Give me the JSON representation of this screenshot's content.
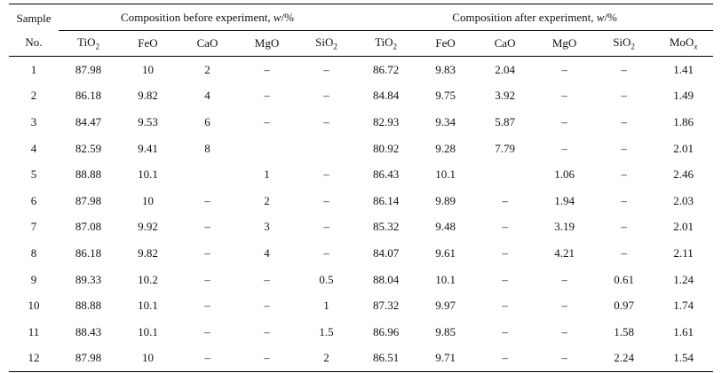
{
  "header": {
    "sample_line1": "Sample",
    "sample_line2": "No.",
    "before_prefix": "Composition before experiment, ",
    "after_prefix": "Composition after experiment, ",
    "w_symbol": "w",
    "percent_suffix": "/%",
    "before_columns": [
      {
        "base": "TiO",
        "sub": "2"
      },
      {
        "base": "FeO",
        "sub": ""
      },
      {
        "base": "CaO",
        "sub": ""
      },
      {
        "base": "MgO",
        "sub": ""
      },
      {
        "base": "SiO",
        "sub": "2"
      }
    ],
    "after_columns": [
      {
        "base": "TiO",
        "sub": "2"
      },
      {
        "base": "FeO",
        "sub": ""
      },
      {
        "base": "CaO",
        "sub": ""
      },
      {
        "base": "MgO",
        "sub": ""
      },
      {
        "base": "SiO",
        "sub": "2"
      },
      {
        "base": "MoO",
        "sub": "x"
      }
    ]
  },
  "rows": [
    [
      "1",
      "87.98",
      "10",
      "2",
      "–",
      "–",
      "86.72",
      "9.83",
      "2.04",
      "–",
      "–",
      "1.41"
    ],
    [
      "2",
      "86.18",
      "9.82",
      "4",
      "–",
      "–",
      "84.84",
      "9.75",
      "3.92",
      "–",
      "–",
      "1.49"
    ],
    [
      "3",
      "84.47",
      "9.53",
      "6",
      "–",
      "–",
      "82.93",
      "9.34",
      "5.87",
      "–",
      "–",
      "1.86"
    ],
    [
      "4",
      "82.59",
      "9.41",
      "8",
      "",
      "",
      "80.92",
      "9.28",
      "7.79",
      "–",
      "–",
      "2.01"
    ],
    [
      "5",
      "88.88",
      "10.1",
      "",
      "1",
      "–",
      "86.43",
      "10.1",
      "",
      "1.06",
      "–",
      "2.46"
    ],
    [
      "6",
      "87.98",
      "10",
      "–",
      "2",
      "–",
      "86.14",
      "9.89",
      "–",
      "1.94",
      "–",
      "2.03"
    ],
    [
      "7",
      "87.08",
      "9.92",
      "–",
      "3",
      "–",
      "85.32",
      "9.48",
      "–",
      "3.19",
      "–",
      "2.01"
    ],
    [
      "8",
      "86.18",
      "9.82",
      "–",
      "4",
      "–",
      "84.07",
      "9.61",
      "–",
      "4.21",
      "–",
      "2.11"
    ],
    [
      "9",
      "89.33",
      "10.2",
      "–",
      "–",
      "0.5",
      "88.04",
      "10.1",
      "–",
      "–",
      "0.61",
      "1.24"
    ],
    [
      "10",
      "88.88",
      "10.1",
      "–",
      "–",
      "1",
      "87.32",
      "9.97",
      "–",
      "–",
      "0.97",
      "1.74"
    ],
    [
      "11",
      "88.43",
      "10.1",
      "–",
      "–",
      "1.5",
      "86.96",
      "9.85",
      "–",
      "–",
      "1.58",
      "1.61"
    ],
    [
      "12",
      "87.98",
      "10",
      "–",
      "–",
      "2",
      "86.51",
      "9.71",
      "–",
      "–",
      "2.24",
      "1.54"
    ]
  ]
}
